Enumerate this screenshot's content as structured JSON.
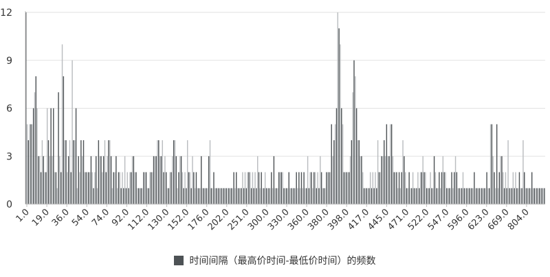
{
  "colors": {
    "bar": "#4d5255",
    "bar_light": "#b9bcbf",
    "grid": "#e2e2e2",
    "axis": "#bfbfbf",
    "text": "#333333"
  },
  "chart_data": {
    "type": "bar",
    "title": "",
    "xlabel": "",
    "ylabel": "",
    "ylim": [
      0,
      12
    ],
    "yticks": [
      0,
      3,
      6,
      9,
      12
    ],
    "grid": true,
    "legend_position": "bottom",
    "x_tick_labels": [
      "1.0",
      "19.0",
      "36.0",
      "54.0",
      "74.0",
      "92.0",
      "112.0",
      "130.0",
      "152.0",
      "176.0",
      "202.0",
      "251.0",
      "300.0",
      "330.0",
      "360.0",
      "380.0",
      "398.0",
      "417.0",
      "445.0",
      "471.0",
      "522.0",
      "547.0",
      "596.0",
      "623.0",
      "669.0",
      "804.0"
    ],
    "series": [
      {
        "name": "时间间隔（最高价时间-最低价时间）的频数",
        "values": [
          12,
          5,
          4,
          5,
          5,
          5,
          6,
          7,
          8,
          6,
          3,
          3,
          2,
          4,
          3,
          2,
          2,
          6,
          4,
          3,
          6,
          3,
          6,
          2,
          2,
          1,
          7,
          3,
          2,
          10,
          8,
          4,
          4,
          2,
          3,
          4,
          2,
          9,
          4,
          4,
          6,
          1,
          3,
          2,
          4,
          3,
          4,
          2,
          2,
          2,
          2,
          2,
          3,
          2,
          1,
          2,
          3,
          1,
          4,
          3,
          3,
          2,
          3,
          4,
          2,
          3,
          4,
          4,
          3,
          1,
          2,
          2,
          3,
          1,
          2,
          2,
          1,
          2,
          1,
          3,
          1,
          2,
          1,
          2,
          2,
          3,
          3,
          2,
          2,
          1,
          1,
          1,
          1,
          1,
          2,
          2,
          2,
          1,
          1,
          2,
          2,
          2,
          3,
          3,
          3,
          4,
          4,
          3,
          3,
          4,
          2,
          3,
          2,
          1,
          1,
          2,
          2,
          3,
          4,
          4,
          3,
          1,
          2,
          3,
          3,
          2,
          1,
          2,
          1,
          4,
          2,
          2,
          1,
          3,
          2,
          1,
          2,
          1,
          1,
          1,
          3,
          1,
          1,
          1,
          1,
          1,
          3,
          4,
          1,
          1,
          2,
          1,
          1,
          1,
          1,
          1,
          1,
          1,
          1,
          1,
          1,
          1,
          1,
          1,
          1,
          1,
          2,
          1,
          2,
          1,
          1,
          1,
          1,
          2,
          1,
          2,
          1,
          2,
          2,
          2,
          1,
          2,
          1,
          2,
          1,
          3,
          2,
          1,
          2,
          1,
          1,
          2,
          1,
          1,
          1,
          1,
          2,
          1,
          3,
          1,
          1,
          1,
          2,
          2,
          2,
          2,
          1,
          1,
          1,
          1,
          2,
          1,
          1,
          1,
          1,
          1,
          2,
          1,
          2,
          1,
          2,
          1,
          2,
          1,
          1,
          3,
          1,
          2,
          2,
          1,
          2,
          2,
          1,
          2,
          1,
          3,
          2,
          1,
          1,
          1,
          2,
          2,
          2,
          2,
          5,
          3,
          4,
          5,
          6,
          12,
          11,
          10,
          6,
          5,
          2,
          2,
          2,
          2,
          2,
          3,
          4,
          7,
          9,
          8,
          6,
          4,
          4,
          3,
          3,
          2,
          1,
          1,
          1,
          1,
          1,
          2,
          1,
          2,
          1,
          2,
          1,
          4,
          2,
          2,
          3,
          3,
          4,
          3,
          5,
          3,
          3,
          5,
          5,
          3,
          2,
          2,
          2,
          1,
          2,
          1,
          2,
          4,
          3,
          2,
          1,
          1,
          2,
          1,
          1,
          2,
          1,
          1,
          1,
          2,
          1,
          2,
          2,
          3,
          2,
          2,
          1,
          1,
          1,
          2,
          1,
          1,
          3,
          2,
          1,
          1,
          2,
          1,
          2,
          3,
          2,
          2,
          1,
          1,
          1,
          1,
          2,
          1,
          2,
          3,
          2,
          1,
          1,
          1,
          1,
          2,
          1,
          1,
          1,
          1,
          1,
          1,
          1,
          1,
          2,
          1,
          1,
          1,
          1,
          1,
          1,
          1,
          1,
          1,
          2,
          1,
          1,
          5,
          5,
          3,
          2,
          1,
          5,
          1,
          2,
          3,
          3,
          2,
          1,
          2,
          1,
          4,
          1,
          1,
          1,
          2,
          1,
          2,
          1,
          1,
          2,
          1,
          1,
          4,
          2,
          1,
          1,
          1,
          1,
          1,
          2,
          1,
          1,
          1,
          1,
          1,
          1,
          1,
          1,
          1,
          1
        ]
      }
    ]
  }
}
